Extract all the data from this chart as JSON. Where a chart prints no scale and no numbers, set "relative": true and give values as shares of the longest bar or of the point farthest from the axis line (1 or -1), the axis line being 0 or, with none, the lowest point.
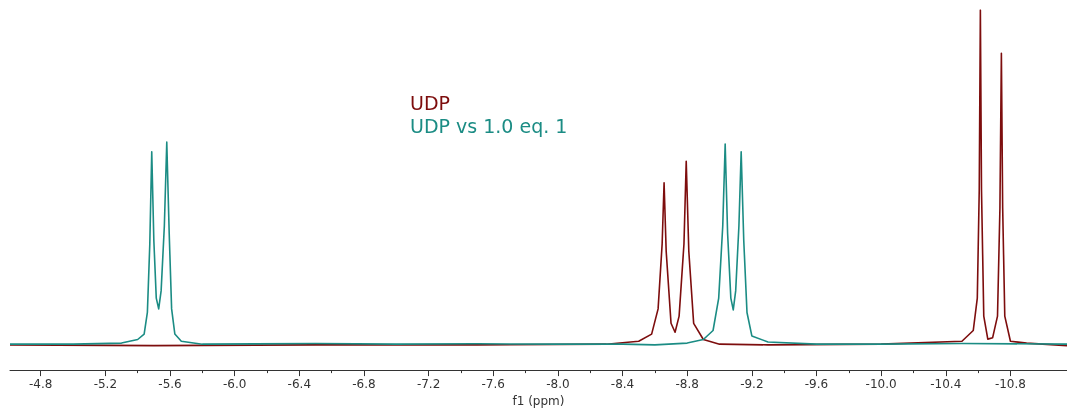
{
  "chart_data": {
    "type": "line",
    "relative": true,
    "xlabel": "f1 (ppm)",
    "xlim": [
      -4.61,
      -11.15
    ],
    "xticks": [
      -4.8,
      -5.2,
      -5.6,
      {
        "value": -6,
        "label": "-6.0"
      },
      -6.4,
      -6.8,
      -7.2,
      -7.6,
      {
        "value": -8,
        "label": "-8.0"
      },
      -8.4,
      -8.8,
      -9.2,
      -9.6,
      {
        "value": -10,
        "label": "-10.0"
      },
      -10.4,
      -10.8
    ],
    "legend": "top",
    "grid": false,
    "marker": "none",
    "line_style": "solid",
    "series": [
      {
        "name": "UDP",
        "color": "#7d0d0d",
        "x": [
          -4.61,
          -5.5,
          -6.5,
          -7.5,
          -8.3,
          -8.5,
          -8.58,
          -8.62,
          -8.645,
          -8.657,
          -8.67,
          -8.7,
          -8.725,
          -8.75,
          -8.78,
          -8.794,
          -8.81,
          -8.84,
          -8.9,
          -9.0,
          -9.3,
          -10.0,
          -10.5,
          -10.57,
          -10.595,
          -10.607,
          -10.614,
          -10.621,
          -10.635,
          -10.66,
          -10.69,
          -10.72,
          -10.735,
          -10.744,
          -10.752,
          -10.765,
          -10.8,
          -10.9,
          -11.15
        ],
        "values": [
          0.07,
          0.068,
          0.07,
          0.07,
          0.072,
          0.08,
          0.1,
          0.17,
          0.35,
          0.52,
          0.33,
          0.13,
          0.105,
          0.15,
          0.35,
          0.58,
          0.33,
          0.13,
          0.085,
          0.072,
          0.07,
          0.072,
          0.08,
          0.11,
          0.2,
          0.5,
          1.0,
          0.5,
          0.15,
          0.086,
          0.09,
          0.15,
          0.45,
          0.88,
          0.45,
          0.15,
          0.08,
          0.075,
          0.068
        ]
      },
      {
        "name": "UDP vs 1.0 eq. 1",
        "color": "#1b8c84",
        "x": [
          -4.61,
          -5.0,
          -5.3,
          -5.4,
          -5.44,
          -5.46,
          -5.475,
          -5.487,
          -5.5,
          -5.515,
          -5.53,
          -5.545,
          -5.565,
          -5.58,
          -5.595,
          -5.61,
          -5.63,
          -5.67,
          -5.8,
          -6.5,
          -7.0,
          -7.5,
          -8.0,
          -8.4,
          -8.6,
          -8.8,
          -8.9,
          -8.96,
          -8.995,
          -9.02,
          -9.035,
          -9.05,
          -9.07,
          -9.085,
          -9.1,
          -9.12,
          -9.134,
          -9.15,
          -9.17,
          -9.2,
          -9.3,
          -9.6,
          -10.0,
          -10.5,
          -11.15
        ],
        "values": [
          0.072,
          0.072,
          0.075,
          0.085,
          0.1,
          0.16,
          0.35,
          0.606,
          0.36,
          0.2,
          0.17,
          0.22,
          0.4,
          0.633,
          0.38,
          0.17,
          0.1,
          0.08,
          0.072,
          0.074,
          0.072,
          0.073,
          0.072,
          0.072,
          0.07,
          0.075,
          0.085,
          0.11,
          0.2,
          0.4,
          0.628,
          0.38,
          0.2,
          0.167,
          0.22,
          0.4,
          0.606,
          0.36,
          0.16,
          0.095,
          0.078,
          0.072,
          0.072,
          0.074,
          0.072
        ]
      }
    ]
  }
}
